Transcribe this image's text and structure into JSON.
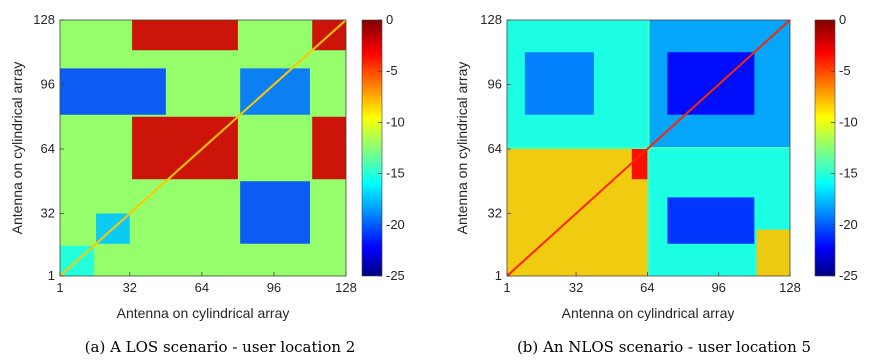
{
  "figure": {
    "captions": [
      "(a) A LOS scenario - user location 2",
      "(b) An NLOS scenario - user location 5"
    ]
  },
  "colormap": "jet",
  "chart_data": [
    {
      "type": "heatmap",
      "title": "",
      "xlabel": "Antenna on cylindrical array",
      "ylabel": "Antenna on cylindrical array",
      "x_ticks": [
        "1",
        "32",
        "64",
        "96",
        "128"
      ],
      "y_ticks": [
        "1",
        "32",
        "64",
        "96",
        "128"
      ],
      "xlim": [
        1,
        128
      ],
      "ylim": [
        1,
        128
      ],
      "colorbar": {
        "range": [
          -25,
          0
        ],
        "ticks": [
          "0",
          "-5",
          "-10",
          "-15",
          "-20",
          "-25"
        ]
      },
      "grid_blocks": [
        {
          "x_range": [
            1,
            16
          ],
          "y_range": [
            1,
            16
          ],
          "value": -15
        },
        {
          "x_range": [
            17,
            32
          ],
          "y_range": [
            17,
            32
          ],
          "value": -17
        },
        {
          "x_range": [
            33,
            80
          ],
          "y_range": [
            49,
            80
          ],
          "value": -2
        },
        {
          "x_range": [
            33,
            80
          ],
          "y_range": [
            113,
            128
          ],
          "value": -2
        },
        {
          "x_range": [
            113,
            128
          ],
          "y_range": [
            49,
            80
          ],
          "value": -2
        },
        {
          "x_range": [
            113,
            128
          ],
          "y_range": [
            113,
            128
          ],
          "value": -2
        },
        {
          "x_range": [
            1,
            48
          ],
          "y_range": [
            81,
            104
          ],
          "value": -20
        },
        {
          "x_range": [
            81,
            112
          ],
          "y_range": [
            17,
            48
          ],
          "value": -20
        },
        {
          "x_range": [
            81,
            112
          ],
          "y_range": [
            81,
            104
          ],
          "value": -19
        }
      ],
      "base_value": -12
    },
    {
      "type": "heatmap",
      "title": "",
      "xlabel": "Antenna on cylindrical array",
      "ylabel": "Antenna on cylindrical array",
      "x_ticks": [
        "1",
        "32",
        "64",
        "96",
        "128"
      ],
      "y_ticks": [
        "1",
        "32",
        "64",
        "96",
        "128"
      ],
      "xlim": [
        1,
        128
      ],
      "ylim": [
        1,
        128
      ],
      "colorbar": {
        "range": [
          -25,
          0
        ],
        "ticks": [
          "0",
          "-5",
          "-10",
          "-15",
          "-20",
          "-25"
        ]
      },
      "grid_blocks": [
        {
          "x_range": [
            1,
            64
          ],
          "y_range": [
            1,
            64
          ],
          "value": -8
        },
        {
          "x_range": [
            65,
            128
          ],
          "y_range": [
            65,
            128
          ],
          "value": -18
        },
        {
          "x_range": [
            1,
            64
          ],
          "y_range": [
            65,
            128
          ],
          "value": -15
        },
        {
          "x_range": [
            65,
            128
          ],
          "y_range": [
            1,
            64
          ],
          "value": -15
        },
        {
          "x_range": [
            73,
            112
          ],
          "y_range": [
            81,
            112
          ],
          "value": -22
        },
        {
          "x_range": [
            73,
            112
          ],
          "y_range": [
            17,
            40
          ],
          "value": -21
        },
        {
          "x_range": [
            9,
            40
          ],
          "y_range": [
            81,
            112
          ],
          "value": -19
        },
        {
          "x_range": [
            113,
            128
          ],
          "y_range": [
            1,
            24
          ],
          "value": -8
        },
        {
          "x_range": [
            57,
            64
          ],
          "y_range": [
            49,
            64
          ],
          "value": -3
        }
      ],
      "base_value": -14,
      "diagonal_value": -4
    }
  ]
}
